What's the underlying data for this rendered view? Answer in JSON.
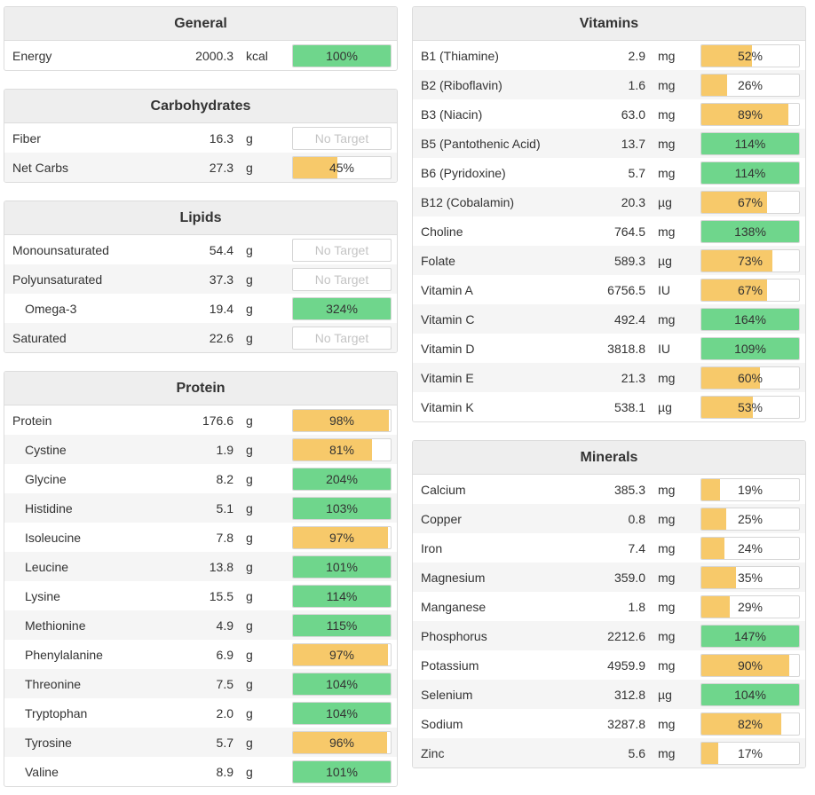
{
  "colors": {
    "green": "#6fd68c",
    "yellow": "#f7c96a",
    "header_bg": "#eeeeee"
  },
  "left_panels": [
    {
      "title": "General",
      "rows": [
        {
          "name": "Energy",
          "amount": "2000.3",
          "unit": "kcal",
          "pct": "100%",
          "value": 100,
          "color": "green",
          "indent": false
        }
      ]
    },
    {
      "title": "Carbohydrates",
      "rows": [
        {
          "name": "Fiber",
          "amount": "16.3",
          "unit": "g",
          "pct": "No Target",
          "value": 0,
          "color": "none",
          "indent": false
        },
        {
          "name": "Net Carbs",
          "amount": "27.3",
          "unit": "g",
          "pct": "45%",
          "value": 45,
          "color": "yellow",
          "indent": false
        }
      ]
    },
    {
      "title": "Lipids",
      "rows": [
        {
          "name": "Monounsaturated",
          "amount": "54.4",
          "unit": "g",
          "pct": "No Target",
          "value": 0,
          "color": "none",
          "indent": false
        },
        {
          "name": "Polyunsaturated",
          "amount": "37.3",
          "unit": "g",
          "pct": "No Target",
          "value": 0,
          "color": "none",
          "indent": false
        },
        {
          "name": "Omega-3",
          "amount": "19.4",
          "unit": "g",
          "pct": "324%",
          "value": 324,
          "color": "green",
          "indent": true
        },
        {
          "name": "Saturated",
          "amount": "22.6",
          "unit": "g",
          "pct": "No Target",
          "value": 0,
          "color": "none",
          "indent": false
        }
      ]
    },
    {
      "title": "Protein",
      "rows": [
        {
          "name": "Protein",
          "amount": "176.6",
          "unit": "g",
          "pct": "98%",
          "value": 98,
          "color": "yellow",
          "indent": false
        },
        {
          "name": "Cystine",
          "amount": "1.9",
          "unit": "g",
          "pct": "81%",
          "value": 81,
          "color": "yellow",
          "indent": true
        },
        {
          "name": "Glycine",
          "amount": "8.2",
          "unit": "g",
          "pct": "204%",
          "value": 204,
          "color": "green",
          "indent": true
        },
        {
          "name": "Histidine",
          "amount": "5.1",
          "unit": "g",
          "pct": "103%",
          "value": 103,
          "color": "green",
          "indent": true
        },
        {
          "name": "Isoleucine",
          "amount": "7.8",
          "unit": "g",
          "pct": "97%",
          "value": 97,
          "color": "yellow",
          "indent": true
        },
        {
          "name": "Leucine",
          "amount": "13.8",
          "unit": "g",
          "pct": "101%",
          "value": 101,
          "color": "green",
          "indent": true
        },
        {
          "name": "Lysine",
          "amount": "15.5",
          "unit": "g",
          "pct": "114%",
          "value": 114,
          "color": "green",
          "indent": true
        },
        {
          "name": "Methionine",
          "amount": "4.9",
          "unit": "g",
          "pct": "115%",
          "value": 115,
          "color": "green",
          "indent": true
        },
        {
          "name": "Phenylalanine",
          "amount": "6.9",
          "unit": "g",
          "pct": "97%",
          "value": 97,
          "color": "yellow",
          "indent": true
        },
        {
          "name": "Threonine",
          "amount": "7.5",
          "unit": "g",
          "pct": "104%",
          "value": 104,
          "color": "green",
          "indent": true
        },
        {
          "name": "Tryptophan",
          "amount": "2.0",
          "unit": "g",
          "pct": "104%",
          "value": 104,
          "color": "green",
          "indent": true
        },
        {
          "name": "Tyrosine",
          "amount": "5.7",
          "unit": "g",
          "pct": "96%",
          "value": 96,
          "color": "yellow",
          "indent": true
        },
        {
          "name": "Valine",
          "amount": "8.9",
          "unit": "g",
          "pct": "101%",
          "value": 101,
          "color": "green",
          "indent": true
        }
      ]
    }
  ],
  "right_panels": [
    {
      "title": "Vitamins",
      "rows": [
        {
          "name": "B1 (Thiamine)",
          "amount": "2.9",
          "unit": "mg",
          "pct": "52%",
          "value": 52,
          "color": "yellow",
          "indent": false
        },
        {
          "name": "B2 (Riboflavin)",
          "amount": "1.6",
          "unit": "mg",
          "pct": "26%",
          "value": 26,
          "color": "yellow",
          "indent": false
        },
        {
          "name": "B3 (Niacin)",
          "amount": "63.0",
          "unit": "mg",
          "pct": "89%",
          "value": 89,
          "color": "yellow",
          "indent": false
        },
        {
          "name": "B5 (Pantothenic Acid)",
          "amount": "13.7",
          "unit": "mg",
          "pct": "114%",
          "value": 114,
          "color": "green",
          "indent": false
        },
        {
          "name": "B6 (Pyridoxine)",
          "amount": "5.7",
          "unit": "mg",
          "pct": "114%",
          "value": 114,
          "color": "green",
          "indent": false
        },
        {
          "name": "B12 (Cobalamin)",
          "amount": "20.3",
          "unit": "µg",
          "pct": "67%",
          "value": 67,
          "color": "yellow",
          "indent": false
        },
        {
          "name": "Choline",
          "amount": "764.5",
          "unit": "mg",
          "pct": "138%",
          "value": 138,
          "color": "green",
          "indent": false
        },
        {
          "name": "Folate",
          "amount": "589.3",
          "unit": "µg",
          "pct": "73%",
          "value": 73,
          "color": "yellow",
          "indent": false
        },
        {
          "name": "Vitamin A",
          "amount": "6756.5",
          "unit": "IU",
          "pct": "67%",
          "value": 67,
          "color": "yellow",
          "indent": false
        },
        {
          "name": "Vitamin C",
          "amount": "492.4",
          "unit": "mg",
          "pct": "164%",
          "value": 164,
          "color": "green",
          "indent": false
        },
        {
          "name": "Vitamin D",
          "amount": "3818.8",
          "unit": "IU",
          "pct": "109%",
          "value": 109,
          "color": "green",
          "indent": false
        },
        {
          "name": "Vitamin E",
          "amount": "21.3",
          "unit": "mg",
          "pct": "60%",
          "value": 60,
          "color": "yellow",
          "indent": false
        },
        {
          "name": "Vitamin K",
          "amount": "538.1",
          "unit": "µg",
          "pct": "53%",
          "value": 53,
          "color": "yellow",
          "indent": false
        }
      ]
    },
    {
      "title": "Minerals",
      "rows": [
        {
          "name": "Calcium",
          "amount": "385.3",
          "unit": "mg",
          "pct": "19%",
          "value": 19,
          "color": "yellow",
          "indent": false
        },
        {
          "name": "Copper",
          "amount": "0.8",
          "unit": "mg",
          "pct": "25%",
          "value": 25,
          "color": "yellow",
          "indent": false
        },
        {
          "name": "Iron",
          "amount": "7.4",
          "unit": "mg",
          "pct": "24%",
          "value": 24,
          "color": "yellow",
          "indent": false
        },
        {
          "name": "Magnesium",
          "amount": "359.0",
          "unit": "mg",
          "pct": "35%",
          "value": 35,
          "color": "yellow",
          "indent": false
        },
        {
          "name": "Manganese",
          "amount": "1.8",
          "unit": "mg",
          "pct": "29%",
          "value": 29,
          "color": "yellow",
          "indent": false
        },
        {
          "name": "Phosphorus",
          "amount": "2212.6",
          "unit": "mg",
          "pct": "147%",
          "value": 147,
          "color": "green",
          "indent": false
        },
        {
          "name": "Potassium",
          "amount": "4959.9",
          "unit": "mg",
          "pct": "90%",
          "value": 90,
          "color": "yellow",
          "indent": false
        },
        {
          "name": "Selenium",
          "amount": "312.8",
          "unit": "µg",
          "pct": "104%",
          "value": 104,
          "color": "green",
          "indent": false
        },
        {
          "name": "Sodium",
          "amount": "3287.8",
          "unit": "mg",
          "pct": "82%",
          "value": 82,
          "color": "yellow",
          "indent": false
        },
        {
          "name": "Zinc",
          "amount": "5.6",
          "unit": "mg",
          "pct": "17%",
          "value": 17,
          "color": "yellow",
          "indent": false
        }
      ]
    }
  ]
}
